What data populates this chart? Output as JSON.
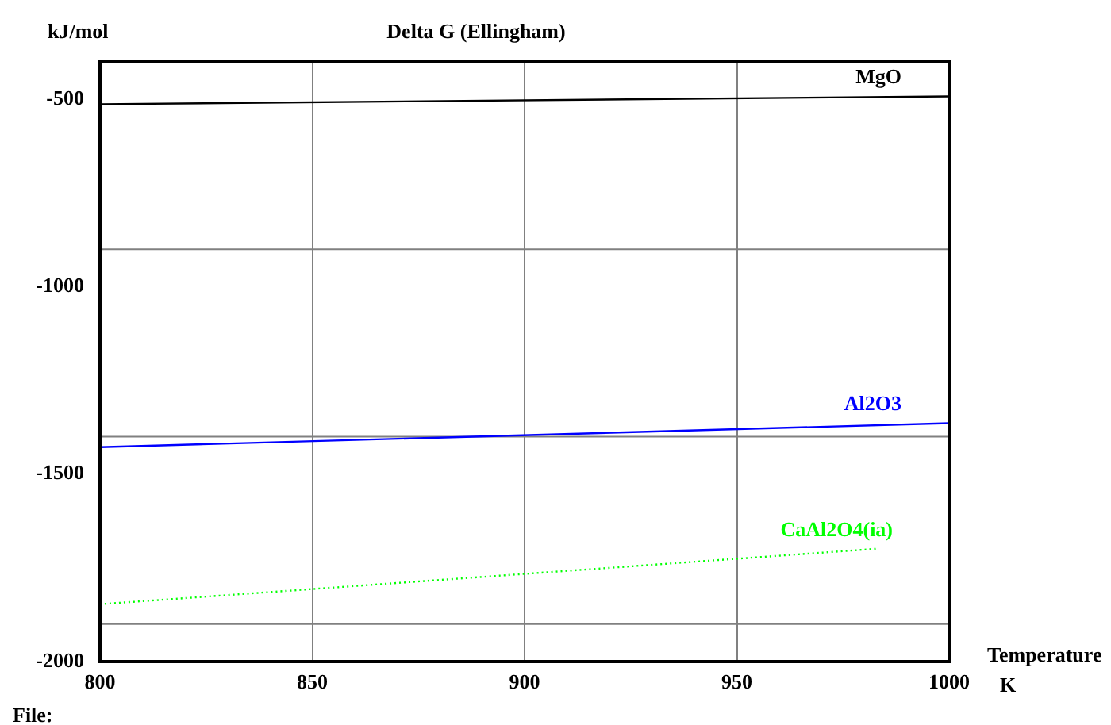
{
  "chart_data": {
    "type": "line",
    "title": "Delta G (Ellingham)",
    "ylabel": "kJ/mol",
    "xlabel": "Temperature\nK",
    "annotations": [
      "File:"
    ],
    "xlim": [
      800,
      1000
    ],
    "xticks": [
      800,
      850,
      900,
      950,
      1000
    ],
    "ylim": [
      -2000,
      -400
    ],
    "yticks": [
      -2000,
      -1500,
      -1000,
      -500
    ],
    "grid": "x",
    "legend": false,
    "marker": "none",
    "ref_lines": [
      {
        "axis": "y",
        "value": -900,
        "color": "#808080"
      },
      {
        "axis": "y",
        "value": -1400,
        "color": "#808080"
      },
      {
        "axis": "y",
        "value": -1900,
        "color": "#808080"
      }
    ],
    "series": [
      {
        "name": "MgO",
        "color": "#000000",
        "x": [
          800,
          1000
        ],
        "values": [
          -513,
          -492
        ]
      },
      {
        "name": "Al2O3",
        "color": "#0000ff",
        "x": [
          800,
          1000
        ],
        "values": [
          -1428,
          -1364
        ]
      },
      {
        "name": "CaAl2O4(ia)",
        "color": "#00ff00",
        "x": [
          800,
          983
        ],
        "values": [
          -1847,
          -1699
        ],
        "line_style": "dotted"
      }
    ]
  }
}
